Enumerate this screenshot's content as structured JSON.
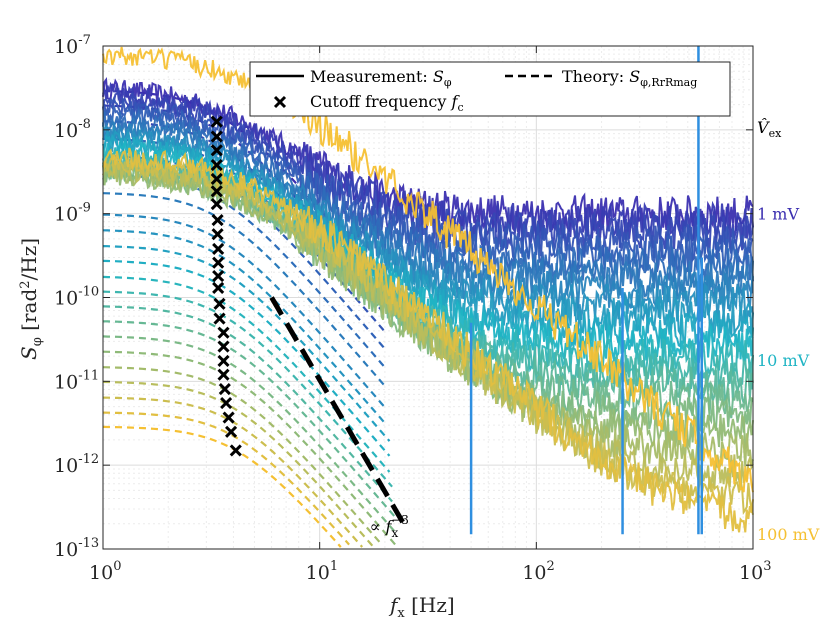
{
  "colors": {
    "low": "#3b2fb0",
    "mid": "#1fb4c4",
    "high": "#f5c033",
    "spike": "#2f8fe0"
  },
  "chart_data": {
    "type": "line",
    "x_scale": "log",
    "y_scale": "log",
    "xlim": [
      1,
      1000
    ],
    "ylim": [
      1e-13,
      1e-07
    ],
    "grid": true,
    "minor_grid": true,
    "xlabel": {
      "main": "f",
      "sub": "x",
      "unit": "[Hz]"
    },
    "ylabel": {
      "main": "S",
      "sub": "φ",
      "unit_pre": "[rad",
      "unit_sup": "2",
      "unit_post": "/Hz]"
    },
    "x_ticks": [
      {
        "value": 1,
        "base": "10",
        "exp": "0"
      },
      {
        "value": 10,
        "base": "10",
        "exp": "1"
      },
      {
        "value": 100,
        "base": "10",
        "exp": "2"
      },
      {
        "value": 1000,
        "base": "10",
        "exp": "3"
      }
    ],
    "y_ticks": [
      {
        "value": 1e-13,
        "base": "10",
        "exp": "-13"
      },
      {
        "value": 1e-12,
        "base": "10",
        "exp": "-12"
      },
      {
        "value": 1e-11,
        "base": "10",
        "exp": "-11"
      },
      {
        "value": 1e-10,
        "base": "10",
        "exp": "-10"
      },
      {
        "value": 1e-09,
        "base": "10",
        "exp": "-9"
      },
      {
        "value": 1e-08,
        "base": "10",
        "exp": "-8"
      },
      {
        "value": 1e-07,
        "base": "10",
        "exp": "-7"
      }
    ],
    "legend": {
      "position": "top-right",
      "measurement": {
        "text": "Measurement: ",
        "sym": "S",
        "sub": "φ"
      },
      "theory": {
        "text": "Theory: ",
        "sym": "S",
        "sub": "φ,RrRmag"
      },
      "cutoff": {
        "text": "Cutoff frequency ",
        "sym": "f",
        "sub": "c"
      }
    },
    "side_title": {
      "sym": "V̂",
      "sub": "ex"
    },
    "amplitude_labels": [
      {
        "text": "1 mV",
        "y": 1e-09,
        "color": "#3b2fb0"
      },
      {
        "text": "10 mV",
        "y": 1.8e-11,
        "color": "#1fb4c4"
      },
      {
        "text": "100 mV",
        "y": 1.5e-13,
        "color": "#f5c033"
      }
    ],
    "slope_annotation": {
      "text_pre": "∝ ",
      "sym": "f",
      "sub": "x",
      "sup": "−3",
      "x": 17,
      "y": 1.6e-13
    },
    "reference_line": {
      "style": "dashed",
      "color": "#000000",
      "points": [
        [
          6.0,
          1e-10
        ],
        [
          25,
          1.8e-13
        ]
      ]
    },
    "measurement_series": [
      {
        "level": 1e-09,
        "start": 3.2e-08,
        "fc": 3.4
      },
      {
        "level": 8e-10,
        "start": 2.8e-08,
        "fc": 3.4
      },
      {
        "level": 6e-10,
        "start": 2.4e-08,
        "fc": 3.4
      },
      {
        "level": 4.5e-10,
        "start": 2e-08,
        "fc": 3.4
      },
      {
        "level": 3.3e-10,
        "start": 1.7e-08,
        "fc": 3.4
      },
      {
        "level": 2.4e-10,
        "start": 1.4e-08,
        "fc": 3.4
      },
      {
        "level": 1.7e-10,
        "start": 1.2e-08,
        "fc": 3.4
      },
      {
        "level": 1.2e-10,
        "start": 1e-08,
        "fc": 3.4
      },
      {
        "level": 8.5e-11,
        "start": 9e-09,
        "fc": 3.5
      },
      {
        "level": 6e-11,
        "start": 8e-09,
        "fc": 3.5
      },
      {
        "level": 4e-11,
        "start": 7e-09,
        "fc": 3.5
      },
      {
        "level": 2.8e-11,
        "start": 6e-09,
        "fc": 3.6
      },
      {
        "level": 1.9e-11,
        "start": 5e-09,
        "fc": 3.6
      },
      {
        "level": 1.3e-11,
        "start": 4.5e-09,
        "fc": 3.7
      },
      {
        "level": 9e-12,
        "start": 4e-09,
        "fc": 3.7
      },
      {
        "level": 6e-12,
        "start": 3.5e-09,
        "fc": 3.8
      },
      {
        "level": 4e-12,
        "start": 3.2e-09,
        "fc": 3.8
      },
      {
        "level": 2.5e-12,
        "start": 3e-09,
        "fc": 3.9
      },
      {
        "level": 1.5e-12,
        "start": 3.2e-09,
        "fc": 4.0
      },
      {
        "level": 8e-13,
        "start": 3.5e-09,
        "fc": 4.1
      },
      {
        "level": 4e-13,
        "start": 4e-09,
        "fc": 4.2
      },
      {
        "level": 2.2e-13,
        "start": 5e-09,
        "fc": 4.2
      },
      {
        "level": 1.5e-13,
        "start": 8e-08,
        "fc": 4.3
      }
    ],
    "theory_series": [
      {
        "plateau": 3e-08,
        "fc": 3.4
      },
      {
        "plateau": 2e-08,
        "fc": 3.4
      },
      {
        "plateau": 1.3e-08,
        "fc": 3.4
      },
      {
        "plateau": 8e-09,
        "fc": 3.4
      },
      {
        "plateau": 5e-09,
        "fc": 3.4
      },
      {
        "plateau": 3e-09,
        "fc": 3.4
      },
      {
        "plateau": 1.8e-09,
        "fc": 3.4
      },
      {
        "plateau": 1e-09,
        "fc": 3.4
      },
      {
        "plateau": 6.5e-10,
        "fc": 3.4
      },
      {
        "plateau": 4.2e-10,
        "fc": 3.5
      },
      {
        "plateau": 2.8e-10,
        "fc": 3.5
      },
      {
        "plateau": 1.8e-10,
        "fc": 3.5
      },
      {
        "plateau": 1.2e-10,
        "fc": 3.6
      },
      {
        "plateau": 8e-11,
        "fc": 3.6
      },
      {
        "plateau": 5.3e-11,
        "fc": 3.7
      },
      {
        "plateau": 3.5e-11,
        "fc": 3.7
      },
      {
        "plateau": 2.3e-11,
        "fc": 3.8
      },
      {
        "plateau": 1.5e-11,
        "fc": 3.8
      },
      {
        "plateau": 1e-11,
        "fc": 3.9
      },
      {
        "plateau": 6.5e-12,
        "fc": 4.0
      },
      {
        "plateau": 4.3e-12,
        "fc": 4.1
      },
      {
        "plateau": 2.9e-12,
        "fc": 4.2
      }
    ],
    "cutoff_points": [
      {
        "f": 3.35,
        "S": 1.25e-08
      },
      {
        "f": 3.35,
        "S": 8.3e-09
      },
      {
        "f": 3.35,
        "S": 5.7e-09
      },
      {
        "f": 3.35,
        "S": 3.8e-09
      },
      {
        "f": 3.35,
        "S": 2.6e-09
      },
      {
        "f": 3.35,
        "S": 1.85e-09
      },
      {
        "f": 3.35,
        "S": 1.3e-09
      },
      {
        "f": 3.38,
        "S": 8.4e-10
      },
      {
        "f": 3.38,
        "S": 5.7e-10
      },
      {
        "f": 3.4,
        "S": 3.8e-10
      },
      {
        "f": 3.4,
        "S": 2.6e-10
      },
      {
        "f": 3.4,
        "S": 1.8e-10
      },
      {
        "f": 3.4,
        "S": 1.3e-10
      },
      {
        "f": 3.45,
        "S": 8.4e-11
      },
      {
        "f": 3.45,
        "S": 5.6e-11
      },
      {
        "f": 3.6,
        "S": 3.8e-11
      },
      {
        "f": 3.6,
        "S": 2.6e-11
      },
      {
        "f": 3.6,
        "S": 1.75e-11
      },
      {
        "f": 3.6,
        "S": 1.2e-11
      },
      {
        "f": 3.65,
        "S": 8.1e-12
      },
      {
        "f": 3.7,
        "S": 5.5e-12
      },
      {
        "f": 3.8,
        "S": 3.7e-12
      },
      {
        "f": 3.9,
        "S": 2.5e-12
      },
      {
        "f": 4.1,
        "S": 1.5e-12
      }
    ],
    "spikes": [
      {
        "f": 50,
        "top": 5e-11
      },
      {
        "f": 250,
        "top": 1.3e-10
      },
      {
        "f": 560,
        "top": 1e-07
      },
      {
        "f": 580,
        "top": 3e-10
      }
    ]
  }
}
